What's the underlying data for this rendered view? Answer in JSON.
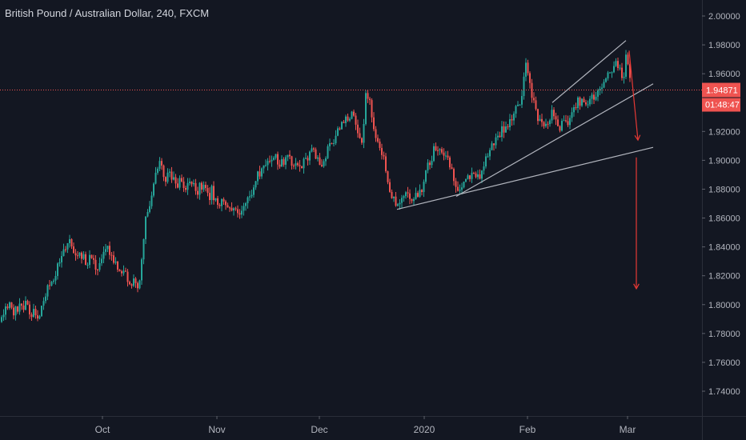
{
  "header": {
    "title": "British Pound / Australian Dollar, 240, FXCM"
  },
  "chart_data": {
    "type": "candlestick",
    "title": "British Pound / Australian Dollar, 240, FXCM",
    "ylim": [
      1.725,
      2.01
    ],
    "y_ticks": [
      "2.00000",
      "1.98000",
      "1.96000",
      "1.94000",
      "1.92000",
      "1.90000",
      "1.88000",
      "1.86000",
      "1.84000",
      "1.82000",
      "1.80000",
      "1.78000",
      "1.76000",
      "1.74000"
    ],
    "x_ticks": [
      "Oct",
      "Nov",
      "Dec",
      "2020",
      "Feb",
      "Mar"
    ],
    "current_price": "1.94871",
    "countdown": "01:48:47",
    "colors": {
      "background": "#131722",
      "up": "#26a69a",
      "down": "#ef5350",
      "price_line": "#ef5350",
      "trendline": "#b2b5be",
      "arrow": "#e53935",
      "axis_text": "#b2b5be"
    },
    "price_path": [
      [
        0,
        1.788
      ],
      [
        5,
        1.796
      ],
      [
        10,
        1.798
      ],
      [
        15,
        1.8
      ],
      [
        18,
        1.793
      ],
      [
        22,
        1.799
      ],
      [
        28,
        1.797
      ],
      [
        33,
        1.802
      ],
      [
        38,
        1.794
      ],
      [
        43,
        1.797
      ],
      [
        48,
        1.792
      ],
      [
        53,
        1.803
      ],
      [
        58,
        1.808
      ],
      [
        63,
        1.814
      ],
      [
        68,
        1.819
      ],
      [
        73,
        1.826
      ],
      [
        78,
        1.832
      ],
      [
        82,
        1.84
      ],
      [
        86,
        1.846
      ],
      [
        90,
        1.841
      ],
      [
        95,
        1.836
      ],
      [
        100,
        1.838
      ],
      [
        105,
        1.831
      ],
      [
        110,
        1.828
      ],
      [
        115,
        1.836
      ],
      [
        120,
        1.824
      ],
      [
        125,
        1.829
      ],
      [
        130,
        1.834
      ],
      [
        135,
        1.839
      ],
      [
        140,
        1.833
      ],
      [
        145,
        1.829
      ],
      [
        150,
        1.826
      ],
      [
        155,
        1.823
      ],
      [
        160,
        1.818
      ],
      [
        165,
        1.814
      ],
      [
        170,
        1.816
      ],
      [
        174,
        1.812
      ],
      [
        177,
        1.833
      ],
      [
        180,
        1.848
      ],
      [
        183,
        1.866
      ],
      [
        187,
        1.868
      ],
      [
        190,
        1.881
      ],
      [
        194,
        1.89
      ],
      [
        198,
        1.898
      ],
      [
        202,
        1.894
      ],
      [
        206,
        1.886
      ],
      [
        210,
        1.892
      ],
      [
        215,
        1.886
      ],
      [
        220,
        1.882
      ],
      [
        225,
        1.889
      ],
      [
        230,
        1.884
      ],
      [
        235,
        1.881
      ],
      [
        240,
        1.886
      ],
      [
        245,
        1.878
      ],
      [
        250,
        1.881
      ],
      [
        255,
        1.879
      ],
      [
        260,
        1.874
      ],
      [
        265,
        1.879
      ],
      [
        270,
        1.872
      ],
      [
        275,
        1.871
      ],
      [
        280,
        1.868
      ],
      [
        285,
        1.87
      ],
      [
        290,
        1.866
      ],
      [
        295,
        1.864
      ],
      [
        298,
        1.858
      ],
      [
        302,
        1.866
      ],
      [
        306,
        1.87
      ],
      [
        310,
        1.875
      ],
      [
        315,
        1.88
      ],
      [
        320,
        1.886
      ],
      [
        325,
        1.892
      ],
      [
        330,
        1.898
      ],
      [
        335,
        1.9
      ],
      [
        340,
        1.898
      ],
      [
        345,
        1.904
      ],
      [
        350,
        1.896
      ],
      [
        355,
        1.899
      ],
      [
        360,
        1.902
      ],
      [
        365,
        1.899
      ],
      [
        370,
        1.896
      ],
      [
        375,
        1.893
      ],
      [
        380,
        1.899
      ],
      [
        385,
        1.904
      ],
      [
        390,
        1.906
      ],
      [
        395,
        1.901
      ],
      [
        400,
        1.898
      ],
      [
        403,
        1.895
      ],
      [
        408,
        1.904
      ],
      [
        413,
        1.91
      ],
      [
        418,
        1.915
      ],
      [
        423,
        1.921
      ],
      [
        428,
        1.924
      ],
      [
        433,
        1.928
      ],
      [
        438,
        1.933
      ],
      [
        443,
        1.927
      ],
      [
        447,
        1.919
      ],
      [
        451,
        1.908
      ],
      [
        454,
        1.925
      ],
      [
        457,
        1.945
      ],
      [
        460,
        1.942
      ],
      [
        463,
        1.936
      ],
      [
        466,
        1.924
      ],
      [
        470,
        1.916
      ],
      [
        475,
        1.909
      ],
      [
        480,
        1.898
      ],
      [
        485,
        1.884
      ],
      [
        490,
        1.876
      ],
      [
        495,
        1.869
      ],
      [
        500,
        1.871
      ],
      [
        505,
        1.873
      ],
      [
        510,
        1.876
      ],
      [
        515,
        1.872
      ],
      [
        520,
        1.879
      ],
      [
        525,
        1.876
      ],
      [
        530,
        1.888
      ],
      [
        535,
        1.896
      ],
      [
        540,
        1.904
      ],
      [
        545,
        1.911
      ],
      [
        550,
        1.909
      ],
      [
        555,
        1.906
      ],
      [
        560,
        1.899
      ],
      [
        565,
        1.892
      ],
      [
        570,
        1.884
      ],
      [
        575,
        1.88
      ],
      [
        580,
        1.882
      ],
      [
        585,
        1.886
      ],
      [
        590,
        1.888
      ],
      [
        595,
        1.892
      ],
      [
        600,
        1.884
      ],
      [
        605,
        1.898
      ],
      [
        610,
        1.906
      ],
      [
        615,
        1.912
      ],
      [
        620,
        1.914
      ],
      [
        625,
        1.919
      ],
      [
        630,
        1.922
      ],
      [
        635,
        1.927
      ],
      [
        640,
        1.931
      ],
      [
        645,
        1.936
      ],
      [
        650,
        1.941
      ],
      [
        654,
        1.952
      ],
      [
        657,
        1.965
      ],
      [
        660,
        1.962
      ],
      [
        663,
        1.948
      ],
      [
        667,
        1.938
      ],
      [
        671,
        1.931
      ],
      [
        675,
        1.927
      ],
      [
        680,
        1.924
      ],
      [
        685,
        1.926
      ],
      [
        690,
        1.932
      ],
      [
        695,
        1.929
      ],
      [
        700,
        1.924
      ],
      [
        705,
        1.931
      ],
      [
        710,
        1.926
      ],
      [
        715,
        1.934
      ],
      [
        720,
        1.938
      ],
      [
        725,
        1.942
      ],
      [
        730,
        1.936
      ],
      [
        735,
        1.94
      ],
      [
        740,
        1.944
      ],
      [
        745,
        1.946
      ],
      [
        750,
        1.951
      ],
      [
        755,
        1.956
      ],
      [
        760,
        1.961
      ],
      [
        765,
        1.963
      ],
      [
        770,
        1.966
      ],
      [
        775,
        1.962
      ],
      [
        779,
        1.958
      ],
      [
        782,
        1.977
      ],
      [
        785,
        1.966
      ],
      [
        788,
        1.953
      ]
    ],
    "annotations": {
      "trendlines": [
        {
          "from": [
            496,
            1.866
          ],
          "to": [
            816,
            1.909
          ]
        },
        {
          "from": [
            570,
            1.875
          ],
          "to": [
            816,
            1.953
          ]
        },
        {
          "from": [
            690,
            1.94
          ],
          "to": [
            782,
            1.983
          ]
        }
      ],
      "arrows": [
        {
          "from": [
            786,
            1.976
          ],
          "to": [
            797,
            1.914
          ]
        },
        {
          "from": [
            795,
            1.902
          ],
          "to": [
            795,
            1.811
          ]
        }
      ]
    }
  }
}
